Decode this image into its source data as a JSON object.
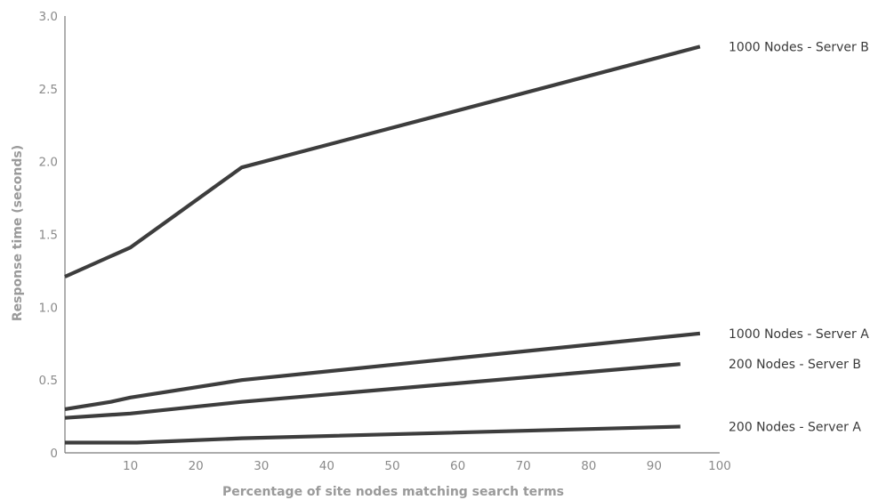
{
  "chart_data": {
    "type": "line",
    "title": "",
    "xlabel": "Percentage of site nodes matching search terms",
    "ylabel": "Response time (seconds)",
    "xlim": [
      0,
      100
    ],
    "ylim": [
      0,
      3.0
    ],
    "x_ticks": [
      "10",
      "20",
      "30",
      "40",
      "50",
      "60",
      "70",
      "80",
      "90",
      "100"
    ],
    "y_ticks": [
      "0",
      "0.5",
      "1.0",
      "1.5",
      "2.0",
      "2.5",
      "3.0"
    ],
    "grid": false,
    "legend": "inline labels at right end of each line",
    "line_color": "#3d3d3d",
    "series": [
      {
        "name": "1000 Nodes - Server B",
        "points": [
          [
            0,
            1.21
          ],
          [
            7,
            1.35
          ],
          [
            10,
            1.41
          ],
          [
            27,
            1.96
          ],
          [
            97,
            2.79
          ]
        ]
      },
      {
        "name": "1000 Nodes - Server A",
        "points": [
          [
            0,
            0.3
          ],
          [
            7,
            0.35
          ],
          [
            10,
            0.38
          ],
          [
            27,
            0.5
          ],
          [
            97,
            0.82
          ]
        ]
      },
      {
        "name": "200 Nodes - Server B",
        "points": [
          [
            0,
            0.24
          ],
          [
            10,
            0.27
          ],
          [
            27,
            0.35
          ],
          [
            94,
            0.61
          ]
        ]
      },
      {
        "name": "200 Nodes - Server A",
        "points": [
          [
            0,
            0.07
          ],
          [
            11,
            0.07
          ],
          [
            27,
            0.1
          ],
          [
            94,
            0.18
          ]
        ]
      }
    ]
  }
}
